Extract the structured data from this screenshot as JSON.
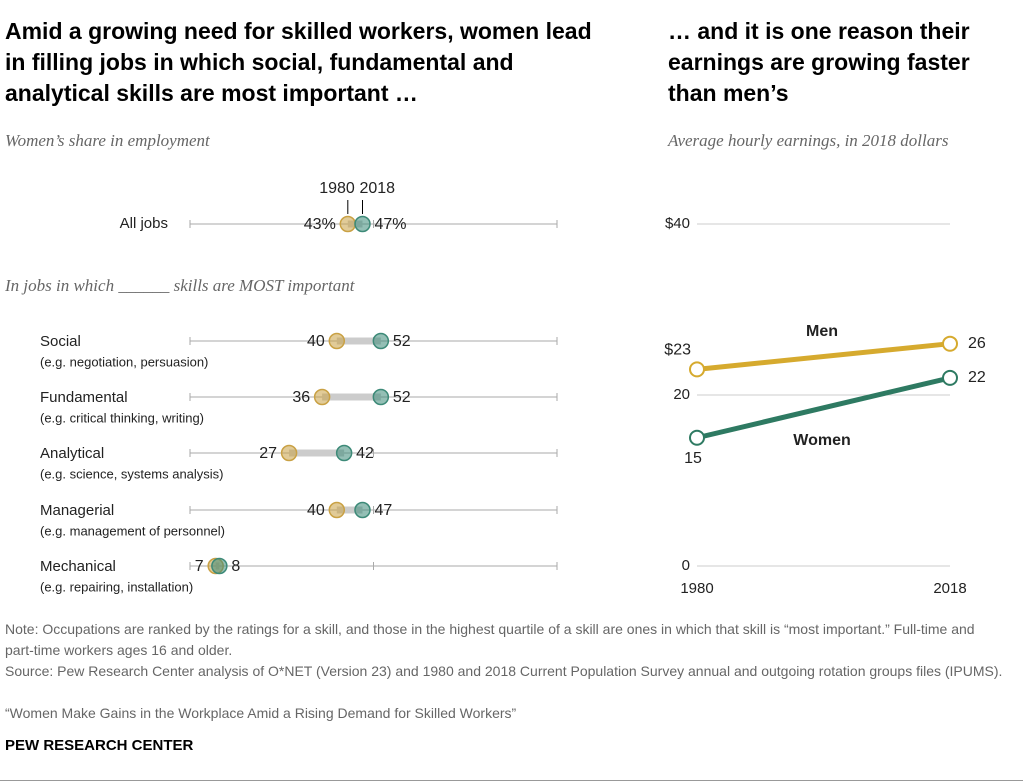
{
  "chart_data": [
    {
      "type": "dot",
      "title": "Amid a growing need for skilled workers, women lead in filling jobs in which social, fundamental and analytical skills are most important …",
      "subtitle": "Women’s share in employment",
      "section_label": "In jobs in which ______ skills are MOST important",
      "categories": [
        "All jobs",
        "Social",
        "Fundamental",
        "Analytical",
        "Managerial",
        "Mechanical"
      ],
      "descriptions": [
        null,
        "(e.g. negotiation, persuasion)",
        "(e.g. critical thinking, writing)",
        "(e.g. science, systems analysis)",
        "(e.g. management of personnel)",
        "(e.g. repairing, installation)"
      ],
      "series": [
        {
          "name": "1980",
          "color": "#c9a144",
          "values": [
            43,
            40,
            36,
            27,
            40,
            7
          ],
          "value_labels": [
            "43%",
            "40",
            "36",
            "27",
            "40",
            "7"
          ]
        },
        {
          "name": "2018",
          "color": "#3d8a78",
          "values": [
            47,
            52,
            52,
            42,
            47,
            8
          ],
          "value_labels": [
            "47%",
            "52",
            "52",
            "42",
            "47",
            "8"
          ]
        }
      ],
      "xlim": [
        0,
        100
      ],
      "xticks": [
        0,
        50,
        100
      ]
    },
    {
      "type": "line",
      "title": "… and it is one reason their earnings are growing faster than men’s",
      "subtitle": "Average hourly earnings, in 2018 dollars",
      "x": [
        1980,
        2018
      ],
      "series": [
        {
          "name": "Men",
          "color": "#d6aa2e",
          "values": [
            23,
            26
          ],
          "value_labels": [
            "$23",
            "26"
          ]
        },
        {
          "name": "Women",
          "color": "#2e7a62",
          "values": [
            15,
            22
          ],
          "value_labels": [
            "15",
            "22"
          ]
        }
      ],
      "xlim": [
        1980,
        2018
      ],
      "xticks": [
        1980,
        2018
      ],
      "ylim": [
        0,
        40
      ],
      "yticks": [
        0,
        20,
        {
          "value": 40,
          "label": "$40"
        }
      ],
      "grid": true
    }
  ],
  "note": "Note: Occupations are ranked by the ratings for a skill, and those in the highest quartile of a skill are ones in which that skill is “most important.” Full-time and part-time workers ages 16 and older.",
  "source": "Source: Pew Research Center analysis of O*NET (Version 23) and 1980 and 2018 Current Population Survey annual and outgoing rotation groups files (IPUMS).",
  "report": "“Women Make Gains in the Workplace Amid a Rising Demand for Skilled Workers”",
  "brand": "PEW RESEARCH CENTER"
}
